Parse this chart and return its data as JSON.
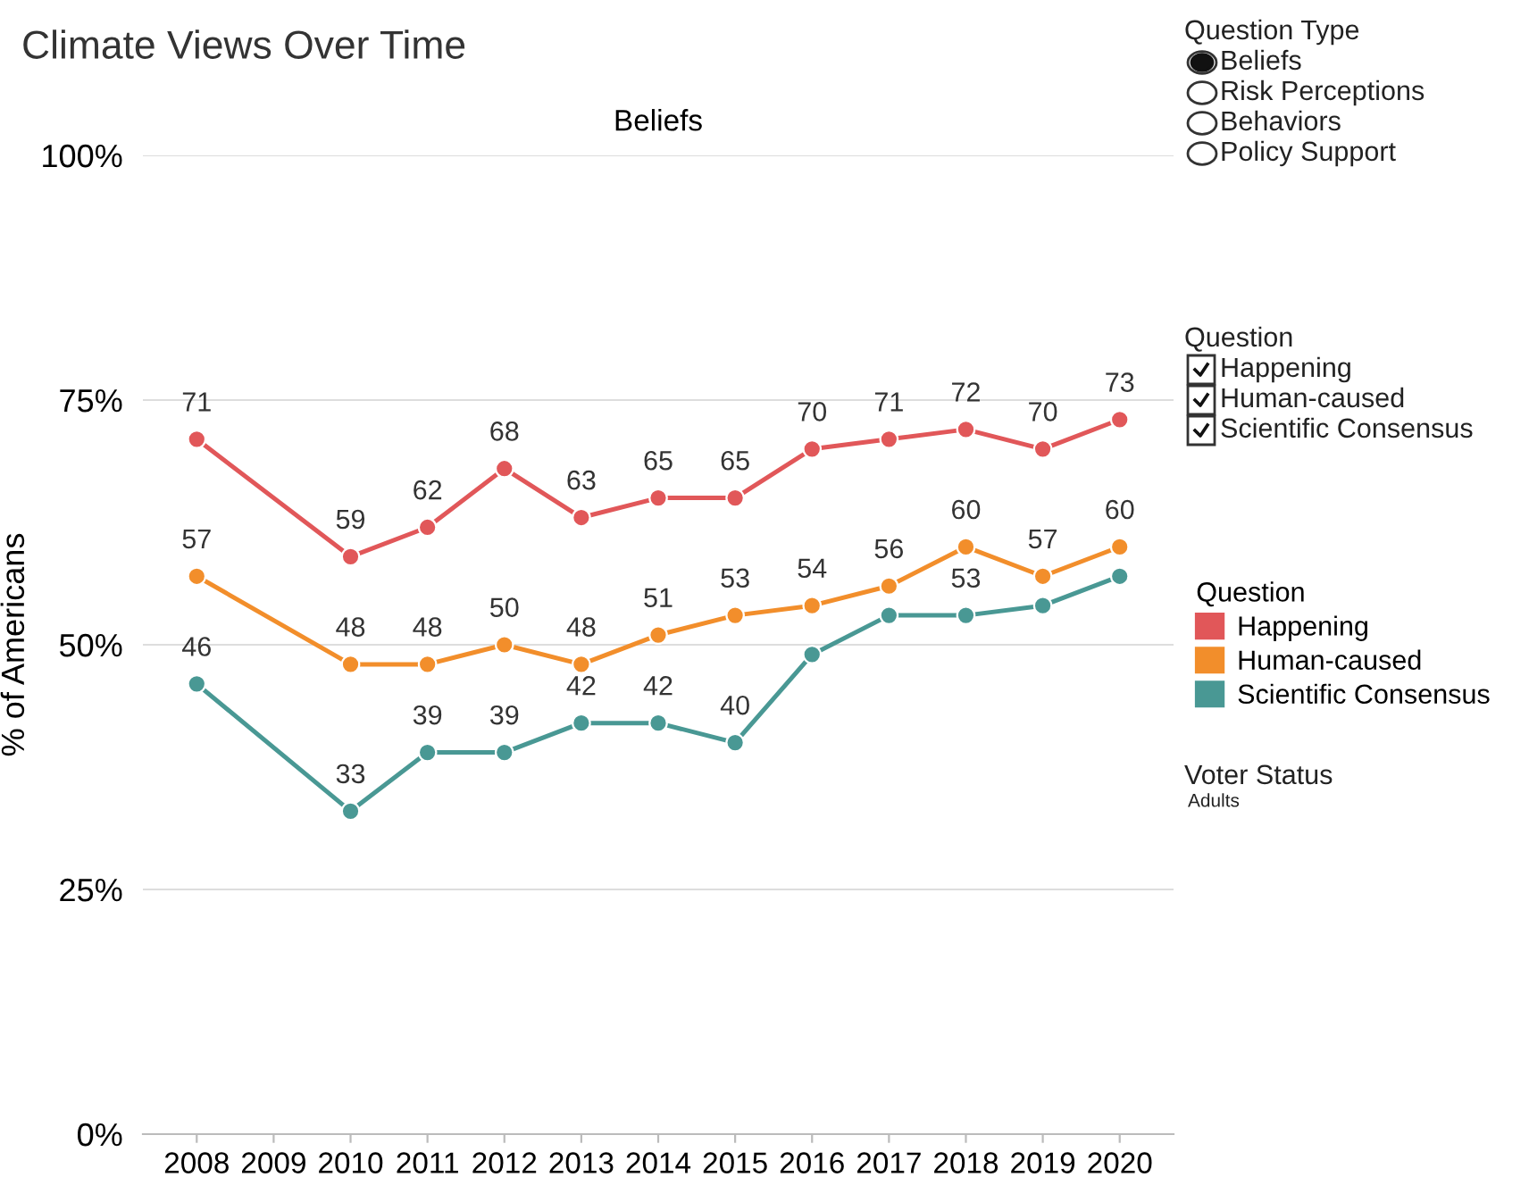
{
  "chart_data": {
    "type": "line",
    "title": "Climate Views Over Time",
    "subtitle": "Beliefs",
    "ylabel": "% of Americans",
    "x": [
      2008,
      2010,
      2011,
      2012,
      2013,
      2014,
      2015,
      2016,
      2017,
      2018,
      2019,
      2020
    ],
    "xlim": [
      2007.3,
      2020.7
    ],
    "xticks": [
      2008,
      2009,
      2010,
      2011,
      2012,
      2013,
      2014,
      2015,
      2016,
      2017,
      2018,
      2019,
      2020
    ],
    "ylim": [
      0,
      100
    ],
    "yticks": [
      {
        "value": 0,
        "label": "0%"
      },
      {
        "value": 25,
        "label": "25%"
      },
      {
        "value": 50,
        "label": "50%"
      },
      {
        "value": 75,
        "label": "75%"
      },
      {
        "value": 100,
        "label": "100%"
      }
    ],
    "grid": "y",
    "data_labels": true,
    "marker": "circle",
    "line_style": "solid",
    "legend": "right",
    "legend_title": "Question",
    "series": [
      {
        "name": "Happening",
        "color": "#e15759",
        "values": [
          71,
          59,
          62,
          68,
          63,
          65,
          65,
          70,
          71,
          72,
          70,
          73
        ]
      },
      {
        "name": "Human-caused",
        "color": "#f28e2b",
        "values": [
          57,
          48,
          48,
          50,
          48,
          51,
          53,
          54,
          56,
          60,
          57,
          60
        ]
      },
      {
        "name": "Scientific Consensus",
        "color": "#499894",
        "values": [
          46,
          33,
          39,
          39,
          42,
          42,
          40,
          49,
          53,
          53,
          54,
          57
        ],
        "value_labels": [
          "46",
          "33",
          "39",
          "39",
          "42",
          "42",
          "40",
          null,
          null,
          "53",
          null,
          null
        ]
      }
    ],
    "annotations": [
      "Question Type",
      "Beliefs",
      "Risk Perceptions",
      "Behaviors",
      "Policy Support",
      "Question",
      "Happening",
      "Human-caused",
      "Scientific Consensus",
      "Voter Status",
      "Adults"
    ]
  }
}
